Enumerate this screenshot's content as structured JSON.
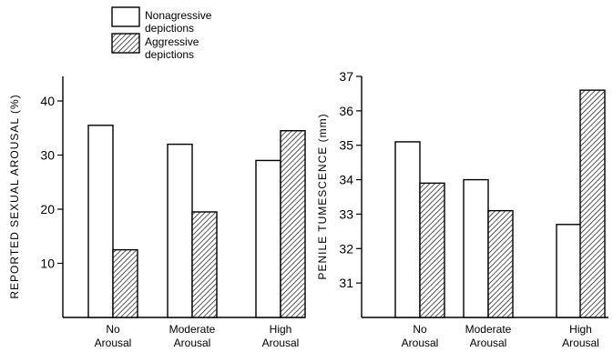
{
  "legend": {
    "items": [
      {
        "label_lines": [
          "Nonagressive",
          "depictions"
        ],
        "pattern": "none"
      },
      {
        "label_lines": [
          "Aggressive",
          "depictions"
        ],
        "pattern": "hatch"
      }
    ]
  },
  "chart_data": [
    {
      "type": "bar",
      "ylabel": "REPORTED SEXUAL AROUSAL (%)",
      "xlabel": "",
      "ylim": [
        0,
        45
      ],
      "yticks": [
        10,
        20,
        30,
        40
      ],
      "categories": [
        [
          "No",
          "Arousal"
        ],
        [
          "Moderate",
          "Arousal"
        ],
        [
          "High",
          "Arousal"
        ]
      ],
      "series": [
        {
          "name": "Nonagressive depictions",
          "values": [
            35.5,
            32,
            29
          ]
        },
        {
          "name": "Aggressive depictions",
          "values": [
            12.5,
            19.5,
            34.5
          ]
        }
      ]
    },
    {
      "type": "bar",
      "ylabel": "PENILE TUMESCENCE (mm)",
      "xlabel": "",
      "ylim": [
        30,
        37
      ],
      "yticks": [
        31,
        32,
        33,
        34,
        35,
        36,
        37
      ],
      "categories": [
        [
          "No",
          "Arousal"
        ],
        [
          "Moderate",
          "Arousal"
        ],
        [
          "High",
          "Arousal"
        ]
      ],
      "series": [
        {
          "name": "Nonagressive depictions",
          "values": [
            35.1,
            34.0,
            32.7
          ]
        },
        {
          "name": "Aggressive depictions",
          "values": [
            33.9,
            33.1,
            36.6
          ]
        }
      ]
    }
  ]
}
